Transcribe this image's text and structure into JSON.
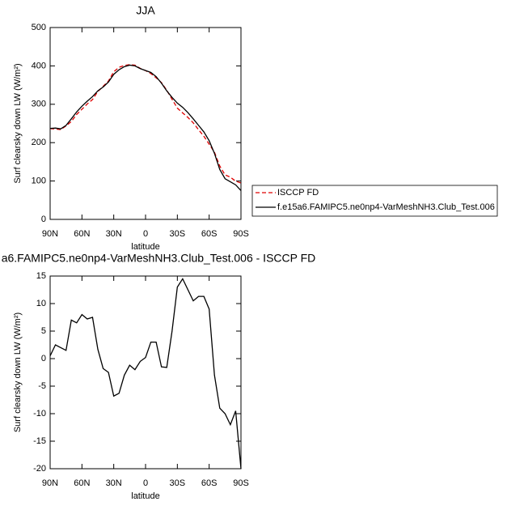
{
  "chart_data": [
    {
      "type": "line",
      "title": "JJA",
      "xlabel": "latitude",
      "ylabel": "Surf clearsky down LW (W/m²)",
      "x": [
        90,
        85,
        80,
        75,
        70,
        65,
        60,
        55,
        50,
        45,
        40,
        35,
        30,
        25,
        20,
        15,
        10,
        5,
        0,
        -5,
        -10,
        -15,
        -20,
        -25,
        -30,
        -35,
        -40,
        -45,
        -50,
        -55,
        -60,
        -65,
        -70,
        -75,
        -80,
        -85,
        -90
      ],
      "xlim": [
        90,
        -90
      ],
      "xticks": [
        {
          "value": 90,
          "label": "90N"
        },
        {
          "value": 60,
          "label": "60N"
        },
        {
          "value": 30,
          "label": "30N"
        },
        0,
        {
          "value": -30,
          "label": "30S"
        },
        {
          "value": -60,
          "label": "60S"
        },
        {
          "value": -90,
          "label": "90S"
        }
      ],
      "ylim": [
        0,
        500
      ],
      "yticks": [
        0,
        100,
        200,
        300,
        400,
        500
      ],
      "legend": "right",
      "series": [
        {
          "name": "ISCCP FD",
          "color": "#e00000",
          "linestyle": "dashed",
          "values": [
            236.5,
            235.5,
            234,
            243.5,
            255,
            273.5,
            287,
            300.8,
            312.5,
            333.3,
            346.8,
            360.5,
            384.8,
            396.3,
            401,
            403.2,
            402,
            393.5,
            387.8,
            380,
            369,
            356.5,
            336.6,
            313,
            290,
            277.5,
            265.5,
            251.5,
            233.7,
            216.7,
            196,
            175,
            139,
            116,
            110,
            99.5,
            95
          ]
        },
        {
          "name": "f.e15a6.FAMIPC5.ne0np4-VarMeshNH3.Club_Test.006",
          "color": "#000000",
          "linestyle": "solid",
          "values": [
            237,
            238,
            236,
            245,
            262,
            280,
            295,
            308,
            320,
            335,
            345,
            358,
            378,
            390,
            398,
            402,
            400,
            393,
            388,
            383,
            372,
            355,
            335,
            318,
            303,
            292,
            278,
            262,
            245,
            228,
            205,
            172,
            130,
            106,
            98,
            90,
            75
          ]
        }
      ]
    },
    {
      "type": "line",
      "title": "a6.FAMIPC5.ne0np4-VarMeshNH3.Club_Test.006 - ISCCP FD",
      "xlabel": "latitude",
      "ylabel": "Surf clearsky down LW (W/m²)",
      "x": [
        90,
        85,
        80,
        75,
        70,
        65,
        60,
        55,
        50,
        45,
        40,
        35,
        30,
        25,
        20,
        15,
        10,
        5,
        0,
        -5,
        -10,
        -15,
        -20,
        -25,
        -30,
        -35,
        -40,
        -45,
        -50,
        -55,
        -60,
        -65,
        -70,
        -75,
        -80,
        -85,
        -90
      ],
      "xlim": [
        90,
        -90
      ],
      "xticks": [
        {
          "value": 90,
          "label": "90N"
        },
        {
          "value": 60,
          "label": "60N"
        },
        {
          "value": 30,
          "label": "30N"
        },
        0,
        {
          "value": -30,
          "label": "30S"
        },
        {
          "value": -60,
          "label": "60S"
        },
        {
          "value": -90,
          "label": "90S"
        }
      ],
      "ylim": [
        -20,
        15
      ],
      "yticks": [
        -20,
        -15,
        -10,
        -5,
        0,
        5,
        10,
        15
      ],
      "series": [
        {
          "color": "#000000",
          "linestyle": "solid",
          "values": [
            0.5,
            2.5,
            2,
            1.5,
            7,
            6.5,
            8,
            7.2,
            7.5,
            1.7,
            -1.8,
            -2.5,
            -6.8,
            -6.3,
            -3,
            -1.2,
            -2,
            -0.5,
            0.2,
            3,
            3,
            -1.5,
            -1.6,
            5,
            13,
            14.5,
            12.5,
            10.5,
            11.3,
            11.3,
            9,
            -3,
            -9,
            -10,
            -12,
            -9.5,
            -20
          ]
        }
      ]
    }
  ]
}
